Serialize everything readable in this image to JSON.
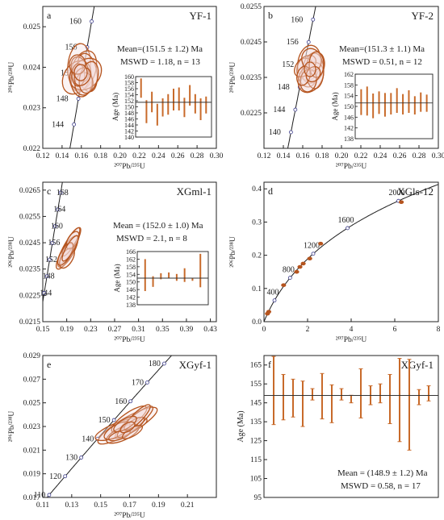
{
  "chart_data": [
    {
      "id": "a",
      "type": "scatter",
      "title": "YF-1",
      "letter": "a",
      "xlim": [
        0.12,
        0.3
      ],
      "ylim": [
        0.022,
        0.0255
      ],
      "xticks": [
        "0.12",
        "0.14",
        "0.16",
        "0.18",
        "0.20",
        "0.22",
        "0.24",
        "0.26",
        "0.28",
        "0.30"
      ],
      "yticks": [
        "0.022",
        "0.023",
        "0.024",
        "0.025"
      ],
      "ytick_values": [
        0.022,
        0.023,
        0.024,
        0.025
      ],
      "concordia_ages": [
        "160",
        "156",
        "152",
        "148",
        "144"
      ],
      "stats": [
        "Mean=(151.5 ± 1.2) Ma",
        "MSWD = 1.18, n = 13"
      ],
      "inset": {
        "ylabel": "Age (Ma)",
        "yticks": [
          "160",
          "158",
          "156",
          "154",
          "152",
          "150",
          "148",
          "146",
          "144",
          "142",
          "140"
        ],
        "ylim": [
          140,
          160
        ],
        "mean": 151.5,
        "ages": [
          156.2,
          148.4,
          151.6,
          147.4,
          149.8,
          150.8,
          152.4,
          152.6,
          149.8,
          153.8,
          151.0,
          149.2,
          150.6
        ],
        "errs": [
          3.2,
          3.8,
          3.4,
          3.6,
          3.0,
          3.4,
          3.6,
          3.8,
          3.2,
          3.4,
          3.2,
          3.6,
          2.8
        ]
      }
    },
    {
      "id": "b",
      "type": "scatter",
      "title": "YF-2",
      "letter": "b",
      "xlim": [
        0.12,
        0.3
      ],
      "ylim": [
        0.0215,
        0.0255
      ],
      "xticks": [
        "0.12",
        "0.14",
        "0.16",
        "0.18",
        "0.20",
        "0.22",
        "0.24",
        "0.26",
        "0.28",
        "0.30"
      ],
      "yticks": [
        "0.0225",
        "0.0235",
        "0.0245",
        "0.0255"
      ],
      "ytick_values": [
        0.0225,
        0.0235,
        0.0245,
        0.0255
      ],
      "concordia_ages": [
        "160",
        "156",
        "152",
        "148",
        "144",
        "140"
      ],
      "stats": [
        "Mean=(151.3 ± 1.1) Ma",
        "MSWD = 0.51, n = 12"
      ],
      "inset": {
        "ylabel": "Age (Ma)",
        "yticks": [
          "162",
          "158",
          "154",
          "150",
          "146",
          "142",
          "138"
        ],
        "ylim": [
          138,
          162
        ],
        "mean": 151.3,
        "ages": [
          151.6,
          152.0,
          150.2,
          151.4,
          150.6,
          151.0,
          152.2,
          150.8,
          151.8,
          150.4,
          151.6,
          151.2
        ],
        "errs": [
          4.8,
          5.4,
          4.6,
          4.2,
          4.4,
          4.0,
          4.6,
          3.8,
          4.2,
          3.4,
          3.6,
          3.2
        ]
      }
    },
    {
      "id": "c",
      "type": "scatter",
      "title": "XGml-1",
      "letter": "c",
      "xlim": [
        0.15,
        0.44
      ],
      "ylim": [
        0.0215,
        0.0268
      ],
      "xticks": [
        "0.15",
        "0.19",
        "0.23",
        "0.27",
        "0.31",
        "0.35",
        "0.39",
        "0.43"
      ],
      "yticks": [
        "0.0215",
        "0.0225",
        "0.0235",
        "0.0245",
        "0.0255",
        "0.0265"
      ],
      "ytick_values": [
        0.0215,
        0.0225,
        0.0235,
        0.0245,
        0.0255,
        0.0265
      ],
      "concordia_ages": [
        "168",
        "164",
        "160",
        "156",
        "152",
        "148",
        "144"
      ],
      "stats": [
        "Mean = (152.0 ± 1.0) Ma",
        "MSWD = 2.1, n = 8"
      ],
      "inset": {
        "ylabel": "Age (Ma)",
        "yticks": [
          "166",
          "162",
          "158",
          "154",
          "150",
          "146",
          "142",
          "138"
        ],
        "ylim": [
          138,
          166
        ],
        "mean": 152.0,
        "ages": [
          153.6,
          150.2,
          153.0,
          153.6,
          152.4,
          153.6,
          151.2,
          156.0
        ],
        "errs": [
          8.4,
          2.8,
          1.6,
          1.4,
          1.8,
          3.6,
          0.6,
          8.8
        ]
      }
    },
    {
      "id": "d",
      "type": "line",
      "title": "XGls-12",
      "letter": "d",
      "xlim": [
        0,
        8
      ],
      "ylim": [
        0,
        0.42
      ],
      "xticks": [
        "0",
        "2",
        "4",
        "6",
        "8"
      ],
      "yticks": [
        "0.0",
        "0.1",
        "0.2",
        "0.3",
        "0.4"
      ],
      "ytick_values": [
        0.0,
        0.1,
        0.2,
        0.3,
        0.4
      ],
      "concordia_ages": [
        "400",
        "800",
        "1200",
        "1600",
        "2000"
      ],
      "points": [
        [
          0.16,
          0.024
        ],
        [
          0.22,
          0.03
        ],
        [
          0.9,
          0.11
        ],
        [
          1.5,
          0.15
        ],
        [
          1.65,
          0.165
        ],
        [
          1.8,
          0.175
        ],
        [
          2.1,
          0.19
        ],
        [
          2.6,
          0.235
        ],
        [
          6.3,
          0.36
        ]
      ]
    },
    {
      "id": "e",
      "type": "scatter",
      "title": "XGyf-1",
      "letter": "e",
      "xlim": [
        0.11,
        0.23
      ],
      "ylim": [
        0.017,
        0.029
      ],
      "xticks": [
        "0.11",
        "0.13",
        "0.15",
        "0.17",
        "0.19",
        "0.21"
      ],
      "yticks": [
        "0.017",
        "0.019",
        "0.021",
        "0.023",
        "0.025",
        "0.027",
        "0.029"
      ],
      "ytick_values": [
        0.017,
        0.019,
        0.021,
        0.023,
        0.025,
        0.027,
        0.029
      ],
      "concordia_ages": [
        "180",
        "170",
        "160",
        "150",
        "140",
        "130",
        "120",
        "110"
      ]
    },
    {
      "id": "f",
      "type": "bar",
      "title": "XGyf-1",
      "letter": "f",
      "ylabel": "Age (Ma)",
      "ylim": [
        95,
        170
      ],
      "yticks": [
        "165",
        "155",
        "145",
        "135",
        "125",
        "115",
        "105",
        "95"
      ],
      "ytick_values": [
        165,
        155,
        145,
        135,
        125,
        115,
        105,
        95
      ],
      "mean": 148.9,
      "ages": [
        151.5,
        148.0,
        147.5,
        144.5,
        149.5,
        148.5,
        144.5,
        149.5,
        147.0,
        150.0,
        149.0,
        150.0,
        147.0,
        146.5,
        144.0,
        148.0,
        150.0
      ],
      "errs": [
        18,
        12,
        10,
        12,
        3,
        12,
        10,
        3,
        2,
        13,
        5,
        5,
        13,
        22,
        24,
        4,
        4
      ],
      "stats": [
        "Mean = (148.9 ± 1.2) Ma",
        "MSWD = 0.58, n = 17"
      ]
    }
  ],
  "labels": {
    "x_pb207_u235": "²⁰⁷Pb/²³⁵U",
    "y_pb206_u238": "²⁰⁶Pb/²³⁸U"
  },
  "colors": {
    "ellipse": "#b5541e",
    "ellipse_fill": "#f3dede",
    "bar": "#c86a2a",
    "concordia": "#3a3a8a"
  }
}
